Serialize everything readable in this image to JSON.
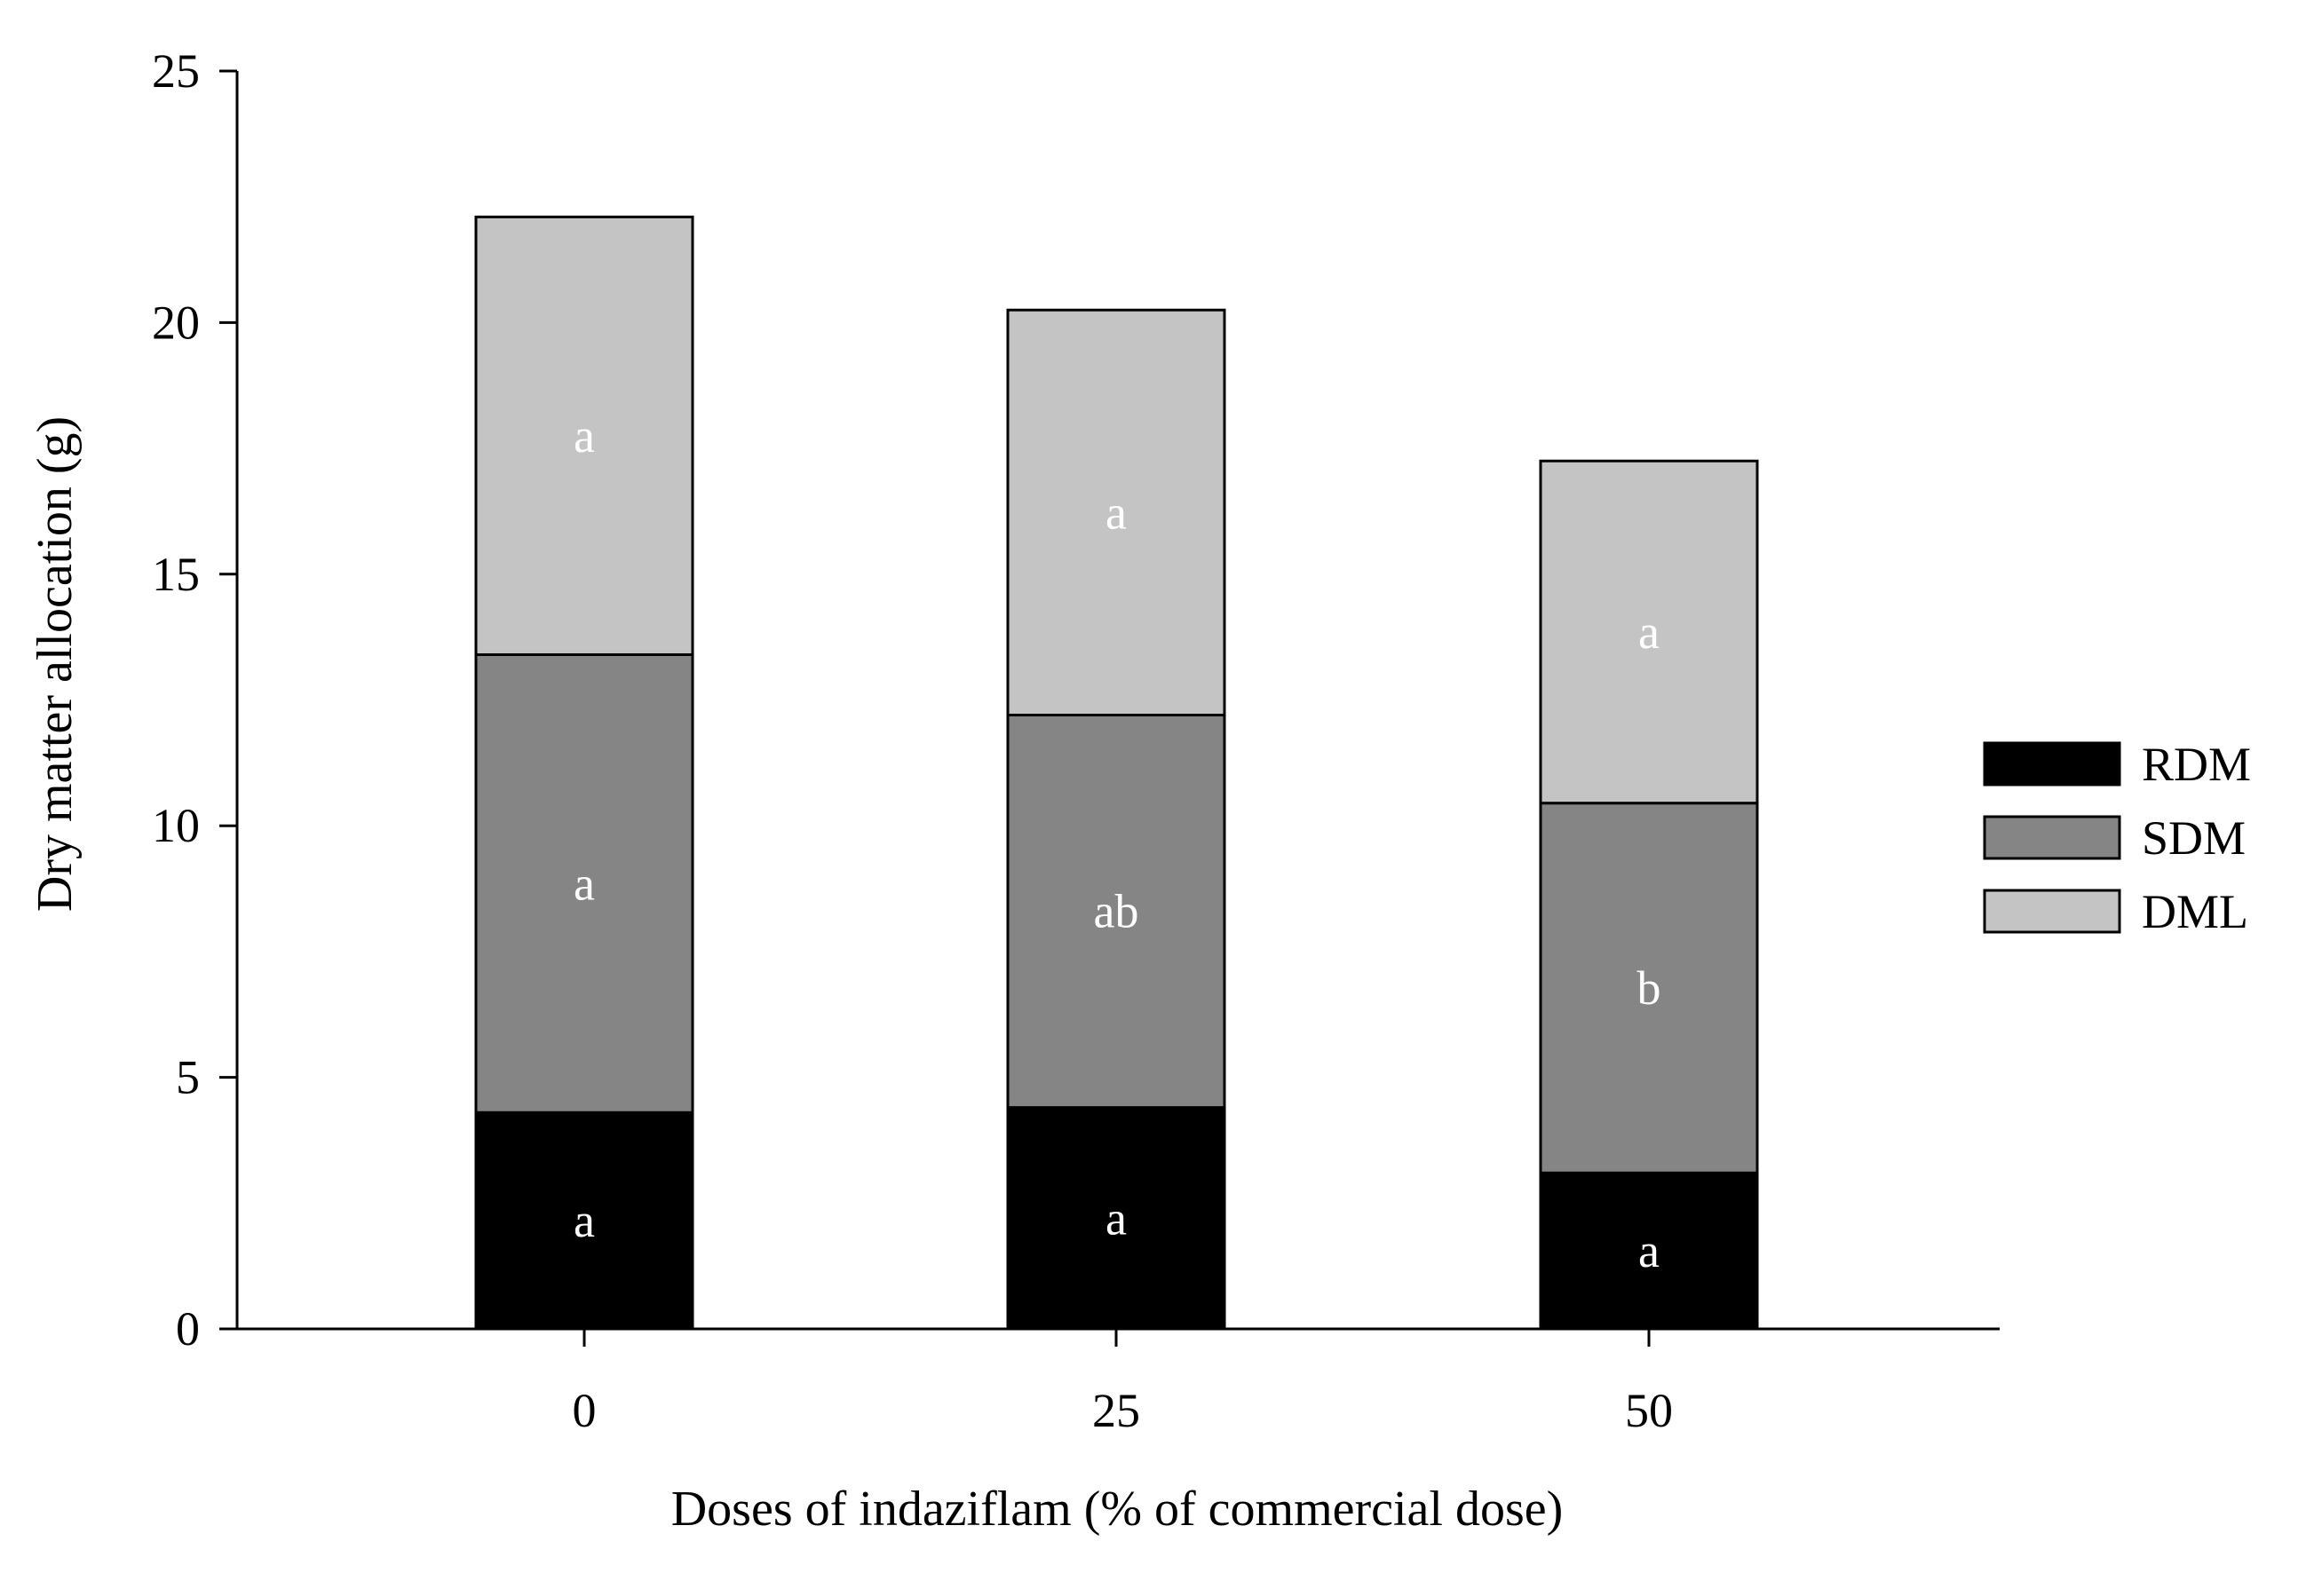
{
  "chart_data": {
    "type": "bar",
    "stacked": true,
    "categories": [
      "0",
      "25",
      "50"
    ],
    "xlabel": "Doses of indaziflam (% of commercial dose)",
    "ylabel": "Dry matter allocation (g)",
    "ylim": [
      0,
      25
    ],
    "yticks": [
      "0",
      "5",
      "10",
      "15",
      "20",
      "25"
    ],
    "grid": false,
    "legend_position": "right",
    "series": [
      {
        "name": "RDM",
        "color": "#000000",
        "values": [
          4.3,
          4.4,
          3.1
        ],
        "labels": [
          "a",
          "a",
          "a"
        ]
      },
      {
        "name": "SDM",
        "color": "#858585",
        "values": [
          9.1,
          7.8,
          7.35
        ],
        "labels": [
          "a",
          "ab",
          "b"
        ]
      },
      {
        "name": "DML",
        "color": "#c4c4c4",
        "values": [
          8.7,
          8.05,
          6.8
        ],
        "labels": [
          "a",
          "a",
          "a"
        ]
      }
    ]
  }
}
